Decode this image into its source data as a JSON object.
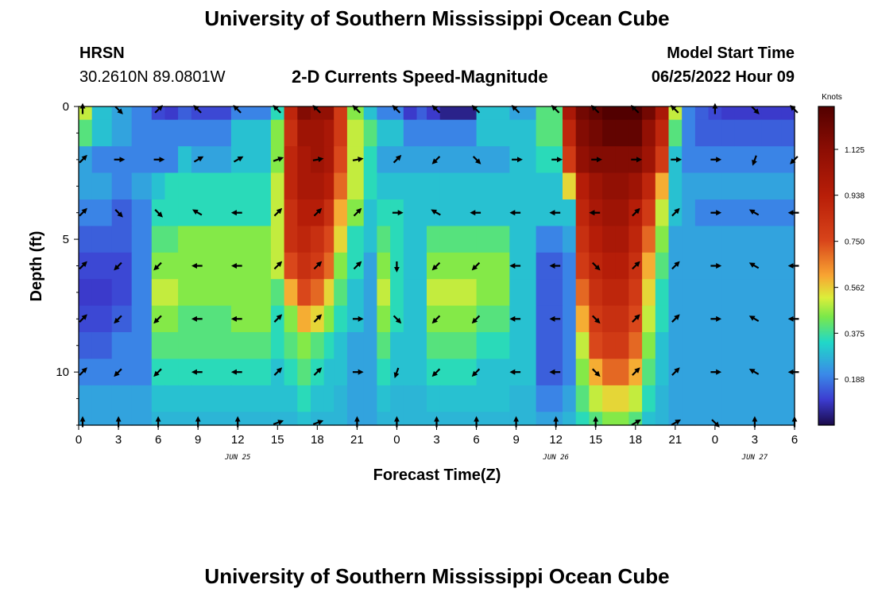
{
  "header": {
    "title": "University of Southern Mississippi Ocean Cube",
    "station": "HRSN",
    "coords": "30.2610N  89.0801W",
    "plot_title": "2-D Currents Speed-Magnitude",
    "model_label": "Model Start Time",
    "model_time": "06/25/2022 Hour 09",
    "footer_title": "University of Southern Mississippi Ocean Cube"
  },
  "chart_data": {
    "type": "heatmap",
    "title": "2-D Currents Speed-Magnitude",
    "xlabel": "Forecast Time(Z)",
    "ylabel": "Depth (ft)",
    "x_ticks": [
      "0",
      "3",
      "6",
      "9",
      "12",
      "15",
      "18",
      "21",
      "0",
      "3",
      "6",
      "9",
      "12",
      "15",
      "18",
      "21",
      "0",
      "3",
      "6"
    ],
    "x_range_hours": [
      0,
      54
    ],
    "date_labels": [
      {
        "label": "JUN 25",
        "hour": 12
      },
      {
        "label": "JUN 26",
        "hour": 36
      },
      {
        "label": "JUN 27",
        "hour": 51
      }
    ],
    "y_ticks": [
      "0",
      "5",
      "10"
    ],
    "y_range_ft": [
      0,
      12
    ],
    "colorbar": {
      "label": "Knots",
      "range": [
        0,
        1.3
      ],
      "ticks": [
        "1.125",
        "0.938",
        "0.750",
        "0.562",
        "0.375",
        "0.188"
      ],
      "tick_values": [
        1.125,
        0.938,
        0.75,
        0.562,
        0.375,
        0.188
      ]
    },
    "depths_ft": [
      0,
      1,
      2,
      3,
      4,
      5,
      6,
      7,
      8,
      9,
      10,
      11,
      12
    ],
    "key_hours": [
      0,
      2,
      3,
      5,
      6,
      7,
      8,
      9,
      14,
      15,
      16,
      17,
      18,
      19,
      19.5,
      21,
      22,
      23,
      24,
      25,
      26,
      26.5,
      28,
      32,
      33,
      36,
      37,
      38,
      39,
      40,
      41,
      42,
      43,
      44,
      45,
      46,
      47,
      48,
      49,
      50,
      51,
      52,
      54
    ],
    "speed_knots": [
      [
        0.5,
        0.3,
        0.25,
        0.2,
        0.12,
        0.1,
        0.15,
        0.12,
        0.2,
        0.35,
        0.9,
        1.15,
        1.1,
        1.1,
        0.8,
        0.45,
        0.3,
        0.2,
        0.2,
        0.1,
        0.15,
        0.1,
        0.05,
        0.3,
        0.25,
        0.4,
        1.0,
        1.2,
        1.25,
        1.3,
        1.3,
        1.3,
        1.2,
        1.0,
        0.5,
        0.2,
        0.15,
        0.12,
        0.1,
        0.1,
        0.1,
        0.1,
        0.1
      ],
      [
        0.4,
        0.3,
        0.25,
        0.2,
        0.2,
        0.2,
        0.2,
        0.2,
        0.3,
        0.45,
        0.85,
        1.05,
        1.05,
        1.0,
        0.8,
        0.5,
        0.4,
        0.3,
        0.3,
        0.2,
        0.2,
        0.2,
        0.2,
        0.3,
        0.3,
        0.4,
        0.9,
        1.15,
        1.2,
        1.25,
        1.25,
        1.25,
        1.1,
        0.9,
        0.4,
        0.2,
        0.15,
        0.15,
        0.15,
        0.15,
        0.15,
        0.15,
        0.15
      ],
      [
        0.25,
        0.2,
        0.2,
        0.2,
        0.2,
        0.2,
        0.3,
        0.25,
        0.3,
        0.45,
        0.9,
        1.0,
        1.05,
        1.0,
        0.75,
        0.5,
        0.35,
        0.25,
        0.25,
        0.25,
        0.25,
        0.25,
        0.25,
        0.25,
        0.3,
        0.35,
        0.8,
        1.1,
        1.15,
        1.15,
        1.15,
        1.15,
        1.05,
        0.8,
        0.3,
        0.2,
        0.2,
        0.2,
        0.2,
        0.2,
        0.2,
        0.2,
        0.2
      ],
      [
        0.25,
        0.25,
        0.2,
        0.25,
        0.3,
        0.35,
        0.35,
        0.35,
        0.35,
        0.5,
        0.9,
        1.0,
        1.0,
        0.95,
        0.7,
        0.5,
        0.35,
        0.3,
        0.3,
        0.3,
        0.3,
        0.3,
        0.3,
        0.3,
        0.3,
        0.3,
        0.55,
        0.95,
        1.05,
        1.1,
        1.1,
        1.05,
        0.9,
        0.6,
        0.3,
        0.25,
        0.25,
        0.25,
        0.25,
        0.25,
        0.25,
        0.25,
        0.25
      ],
      [
        0.2,
        0.2,
        0.15,
        0.2,
        0.35,
        0.35,
        0.35,
        0.35,
        0.35,
        0.5,
        0.85,
        0.95,
        0.95,
        0.85,
        0.6,
        0.45,
        0.3,
        0.35,
        0.35,
        0.3,
        0.3,
        0.3,
        0.3,
        0.3,
        0.3,
        0.3,
        0.3,
        0.9,
        1.0,
        1.05,
        1.05,
        0.95,
        0.8,
        0.5,
        0.3,
        0.25,
        0.2,
        0.2,
        0.2,
        0.2,
        0.2,
        0.2,
        0.2
      ],
      [
        0.15,
        0.15,
        0.15,
        0.2,
        0.4,
        0.4,
        0.45,
        0.45,
        0.45,
        0.5,
        0.85,
        0.9,
        0.85,
        0.75,
        0.55,
        0.35,
        0.3,
        0.4,
        0.35,
        0.3,
        0.3,
        0.4,
        0.4,
        0.4,
        0.3,
        0.2,
        0.25,
        0.85,
        0.95,
        1.0,
        1.0,
        0.9,
        0.7,
        0.45,
        0.25,
        0.25,
        0.25,
        0.25,
        0.25,
        0.25,
        0.25,
        0.25,
        0.25
      ],
      [
        0.12,
        0.12,
        0.12,
        0.2,
        0.45,
        0.45,
        0.45,
        0.45,
        0.45,
        0.5,
        0.75,
        0.85,
        0.8,
        0.7,
        0.45,
        0.35,
        0.25,
        0.45,
        0.35,
        0.3,
        0.3,
        0.45,
        0.45,
        0.45,
        0.3,
        0.15,
        0.2,
        0.8,
        0.9,
        0.95,
        0.95,
        0.85,
        0.6,
        0.4,
        0.25,
        0.25,
        0.25,
        0.25,
        0.25,
        0.25,
        0.25,
        0.25,
        0.25
      ],
      [
        0.1,
        0.1,
        0.12,
        0.2,
        0.5,
        0.5,
        0.45,
        0.45,
        0.45,
        0.4,
        0.6,
        0.75,
        0.7,
        0.55,
        0.4,
        0.3,
        0.25,
        0.5,
        0.35,
        0.3,
        0.3,
        0.5,
        0.5,
        0.45,
        0.3,
        0.15,
        0.2,
        0.7,
        0.85,
        0.9,
        0.9,
        0.8,
        0.55,
        0.35,
        0.25,
        0.25,
        0.25,
        0.25,
        0.25,
        0.25,
        0.25,
        0.25,
        0.25
      ],
      [
        0.12,
        0.12,
        0.15,
        0.2,
        0.45,
        0.45,
        0.4,
        0.4,
        0.45,
        0.35,
        0.45,
        0.6,
        0.55,
        0.45,
        0.35,
        0.3,
        0.25,
        0.45,
        0.35,
        0.3,
        0.3,
        0.45,
        0.45,
        0.4,
        0.3,
        0.15,
        0.2,
        0.6,
        0.8,
        0.85,
        0.85,
        0.75,
        0.5,
        0.35,
        0.25,
        0.25,
        0.25,
        0.25,
        0.25,
        0.25,
        0.25,
        0.25,
        0.25
      ],
      [
        0.15,
        0.15,
        0.2,
        0.2,
        0.4,
        0.4,
        0.4,
        0.4,
        0.4,
        0.35,
        0.4,
        0.45,
        0.4,
        0.35,
        0.3,
        0.25,
        0.25,
        0.4,
        0.3,
        0.3,
        0.3,
        0.4,
        0.4,
        0.35,
        0.3,
        0.15,
        0.2,
        0.5,
        0.75,
        0.8,
        0.8,
        0.7,
        0.45,
        0.3,
        0.25,
        0.25,
        0.25,
        0.25,
        0.25,
        0.25,
        0.25,
        0.25,
        0.25
      ],
      [
        0.2,
        0.2,
        0.2,
        0.2,
        0.35,
        0.35,
        0.35,
        0.35,
        0.35,
        0.3,
        0.35,
        0.4,
        0.35,
        0.3,
        0.3,
        0.25,
        0.25,
        0.35,
        0.3,
        0.3,
        0.3,
        0.35,
        0.35,
        0.3,
        0.3,
        0.15,
        0.2,
        0.45,
        0.6,
        0.7,
        0.7,
        0.6,
        0.4,
        0.3,
        0.25,
        0.25,
        0.25,
        0.25,
        0.25,
        0.25,
        0.25,
        0.25,
        0.25
      ],
      [
        0.25,
        0.25,
        0.25,
        0.25,
        0.3,
        0.3,
        0.3,
        0.3,
        0.3,
        0.3,
        0.3,
        0.35,
        0.3,
        0.3,
        0.28,
        0.25,
        0.25,
        0.3,
        0.28,
        0.28,
        0.28,
        0.3,
        0.3,
        0.3,
        0.28,
        0.2,
        0.25,
        0.4,
        0.5,
        0.55,
        0.55,
        0.5,
        0.35,
        0.28,
        0.25,
        0.25,
        0.25,
        0.25,
        0.25,
        0.25,
        0.25,
        0.25,
        0.25
      ],
      [
        0.25,
        0.25,
        0.25,
        0.25,
        0.28,
        0.28,
        0.28,
        0.28,
        0.28,
        0.28,
        0.28,
        0.3,
        0.28,
        0.28,
        0.28,
        0.25,
        0.25,
        0.28,
        0.28,
        0.28,
        0.28,
        0.28,
        0.28,
        0.28,
        0.28,
        0.25,
        0.28,
        0.35,
        0.4,
        0.45,
        0.45,
        0.4,
        0.3,
        0.28,
        0.25,
        0.25,
        0.25,
        0.25,
        0.25,
        0.25,
        0.25,
        0.25,
        0.25
      ]
    ],
    "arrow_depths_ft": [
      0,
      2,
      4,
      6,
      8,
      10,
      12
    ],
    "arrow_hours": [
      0,
      3,
      6,
      9,
      12,
      15,
      18,
      21,
      24,
      27,
      30,
      33,
      36,
      39,
      42,
      45,
      48,
      51,
      54
    ],
    "arrow_direction_deg": [
      [
        0,
        135,
        45,
        315,
        315,
        315,
        315,
        315,
        315,
        315,
        315,
        315,
        315,
        315,
        315,
        315,
        0,
        135,
        315
      ],
      [
        45,
        90,
        90,
        60,
        60,
        70,
        80,
        80,
        45,
        225,
        135,
        90,
        90,
        90,
        90,
        90,
        90,
        200,
        225
      ],
      [
        45,
        135,
        135,
        300,
        270,
        45,
        45,
        45,
        90,
        300,
        270,
        270,
        270,
        270,
        45,
        45,
        90,
        300,
        270
      ],
      [
        45,
        225,
        225,
        270,
        270,
        45,
        45,
        45,
        180,
        225,
        225,
        270,
        270,
        135,
        45,
        45,
        90,
        300,
        270
      ],
      [
        45,
        225,
        225,
        270,
        270,
        45,
        45,
        90,
        135,
        225,
        225,
        270,
        270,
        135,
        45,
        45,
        90,
        300,
        270
      ],
      [
        45,
        225,
        225,
        270,
        270,
        45,
        45,
        90,
        200,
        225,
        225,
        270,
        270,
        135,
        45,
        45,
        90,
        300,
        270
      ],
      [
        0,
        0,
        0,
        0,
        0,
        70,
        70,
        0,
        0,
        0,
        0,
        0,
        0,
        0,
        60,
        60,
        135,
        0,
        0
      ]
    ]
  }
}
